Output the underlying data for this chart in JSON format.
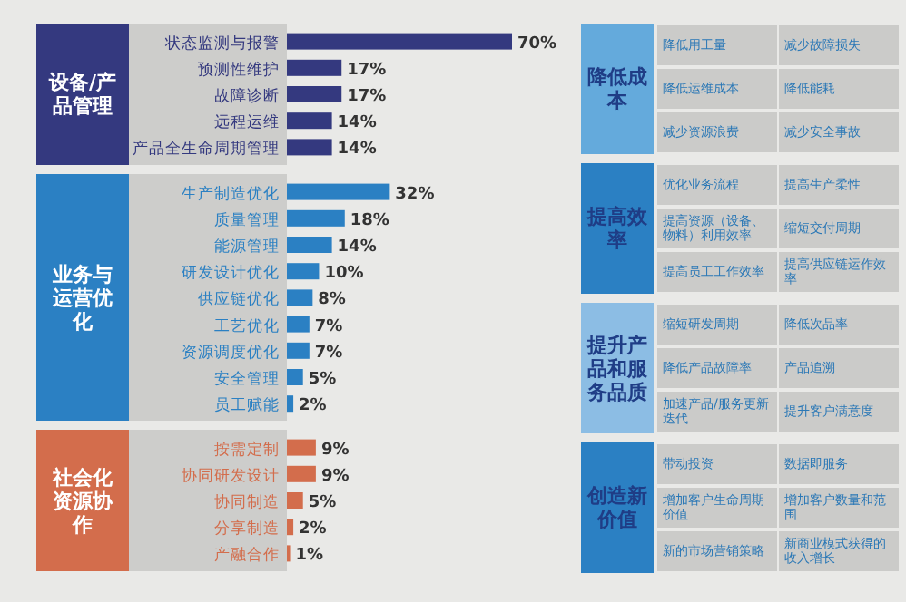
{
  "chart_data": [
    {
      "type": "bar",
      "orientation": "horizontal",
      "title": "设备/产品管理",
      "color": "#34397f",
      "categories": [
        "状态监测与报警",
        "预测性维护",
        "故障诊断",
        "远程运维",
        "产品全生命周期管理"
      ],
      "values": [
        70,
        17,
        17,
        14,
        14
      ],
      "value_labels": [
        "70%",
        "17%",
        "17%",
        "14%",
        "14%"
      ]
    },
    {
      "type": "bar",
      "orientation": "horizontal",
      "title": "业务与运营优化",
      "color": "#2b80c3",
      "categories": [
        "生产制造优化",
        "质量管理",
        "能源管理",
        "研发设计优化",
        "供应链优化",
        "工艺优化",
        "资源调度优化",
        "安全管理",
        "员工赋能"
      ],
      "values": [
        32,
        18,
        14,
        10,
        8,
        7,
        7,
        5,
        2
      ],
      "value_labels": [
        "32%",
        "18%",
        "14%",
        "10%",
        "8%",
        "7%",
        "7%",
        "5%",
        "2%"
      ]
    },
    {
      "type": "bar",
      "orientation": "horizontal",
      "title": "社会化资源协作",
      "color": "#d36d4c",
      "categories": [
        "按需定制",
        "协同研发设计",
        "协同制造",
        "分享制造",
        "产融合作"
      ],
      "values": [
        9,
        9,
        5,
        2,
        1
      ],
      "value_labels": [
        "9%",
        "9%",
        "5%",
        "2%",
        "1%"
      ]
    },
    {
      "type": "other",
      "title": "降低成本",
      "color": "#64aadc",
      "annotations": [
        "降低用工量",
        "减少故障损失",
        "降低运维成本",
        "降低能耗",
        "减少资源浪费",
        "减少安全事故"
      ]
    },
    {
      "type": "other",
      "title": "提高效率",
      "color": "#2b80c3",
      "annotations": [
        "优化业务流程",
        "提高生产柔性",
        "提高资源（设备、物料）利用效率",
        "缩短交付周期",
        "提高员工工作效率",
        "提高供应链运作效率"
      ]
    },
    {
      "type": "other",
      "title": "提升产品和服务品质",
      "color": "#8cbde4",
      "annotations": [
        "缩短研发周期",
        "降低次品率",
        "降低产品故障率",
        "产品追溯",
        "加速产品/服务更新迭代",
        "提升客户满意度"
      ]
    },
    {
      "type": "other",
      "title": "创造新价值",
      "color": "#2b80c3",
      "annotations": [
        "带动投资",
        "数据即服务",
        "增加客户生命周期价值",
        "增加客户数量和范围",
        "新的市场营销策略",
        "新商业模式获得的收入增长"
      ]
    }
  ]
}
